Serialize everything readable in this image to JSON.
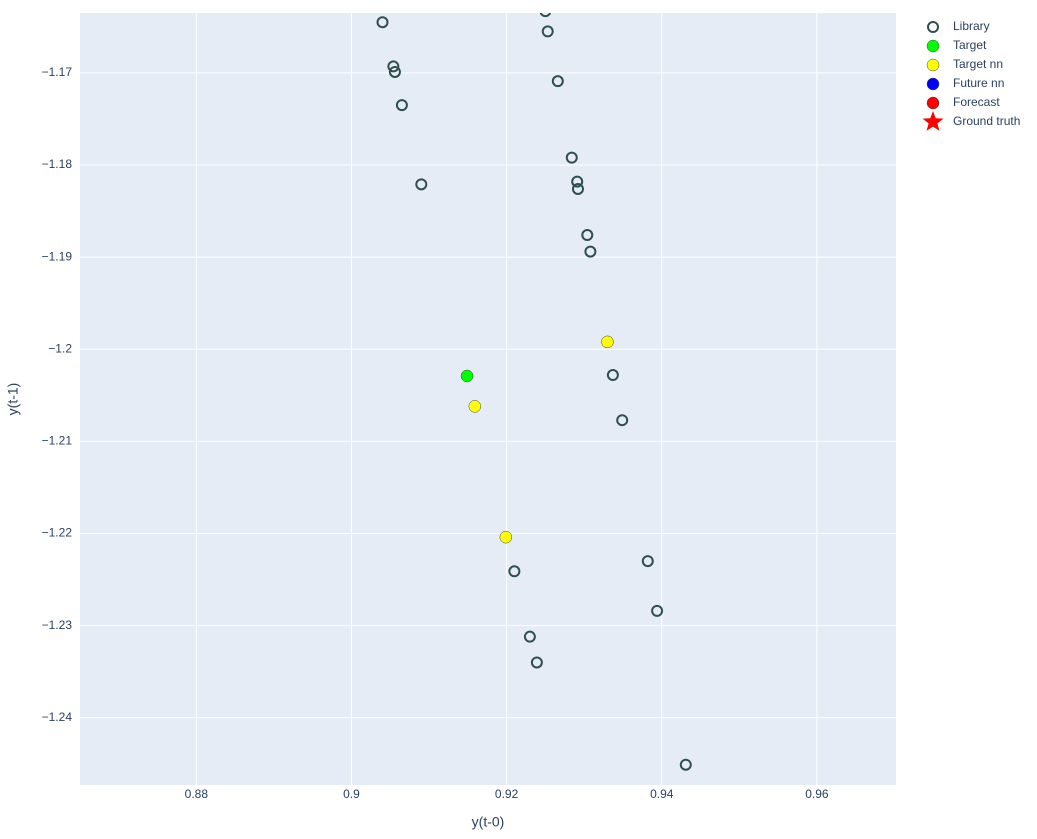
{
  "chart_data": {
    "type": "scatter",
    "x_label": "y(t-0)",
    "y_label": "y(t-1)",
    "xlim": [
      0.865,
      0.9702
    ],
    "ylim": [
      -1.2473,
      -1.1635
    ],
    "xticks": [
      0.88,
      0.9,
      0.92,
      0.94,
      0.96
    ],
    "yticks": [
      {
        "value": -1.17,
        "label": "−1.17"
      },
      {
        "value": -1.18,
        "label": "−1.18"
      },
      {
        "value": -1.19,
        "label": "−1.19"
      },
      {
        "value": -1.2,
        "label": "−1.2"
      },
      {
        "value": -1.21,
        "label": "−1.21"
      },
      {
        "value": -1.22,
        "label": "−1.22"
      },
      {
        "value": -1.23,
        "label": "−1.23"
      },
      {
        "value": -1.24,
        "label": "−1.24"
      }
    ],
    "grid": true,
    "legend": "right",
    "series": [
      {
        "name": "Library",
        "color": "#2f4f4f",
        "symbol": "circle-open",
        "x": [
          0.904,
          0.925,
          0.9253,
          0.9054,
          0.9056,
          0.9266,
          0.9065,
          0.909,
          0.9284,
          0.9291,
          0.9292,
          0.9304,
          0.9308,
          0.933,
          0.9337,
          0.9349,
          0.9382,
          0.921,
          0.9394,
          0.923,
          0.9239,
          0.9431
        ],
        "y": [
          -1.1645,
          -1.1633,
          -1.1655,
          -1.1693,
          -1.1699,
          -1.1709,
          -1.1735,
          -1.1821,
          -1.1792,
          -1.1818,
          -1.1826,
          -1.1876,
          -1.1894,
          -1.1992,
          -1.2028,
          -1.2077,
          -1.223,
          -1.2241,
          -1.2284,
          -1.2312,
          -1.234,
          -1.2451
        ]
      },
      {
        "name": "Target",
        "color": "#00ff00",
        "symbol": "circle",
        "x": [
          0.9149
        ],
        "y": [
          -1.2029
        ]
      },
      {
        "name": "Target nn",
        "color": "#ffff00",
        "symbol": "circle",
        "x": [
          0.933,
          0.9159,
          0.9199
        ],
        "y": [
          -1.1992,
          -1.2062,
          -1.2204
        ]
      },
      {
        "name": "Future nn",
        "color": "#0000ff",
        "symbol": "circle",
        "x": [],
        "y": []
      },
      {
        "name": "Forecast",
        "color": "#ff0000",
        "symbol": "circle",
        "x": [],
        "y": []
      },
      {
        "name": "Ground truth",
        "color": "#ff0000",
        "symbol": "star",
        "x": [],
        "y": []
      }
    ]
  }
}
